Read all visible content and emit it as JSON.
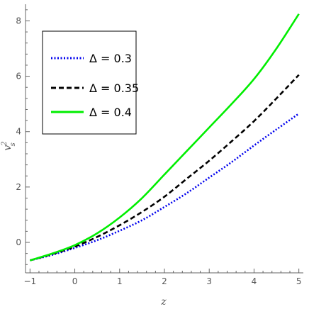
{
  "chart_data": {
    "type": "line",
    "title": "",
    "xlabel": "z",
    "ylabel_base": "v",
    "ylabel_sup": "2",
    "ylabel_sub": "s",
    "xlim": [
      -1.1,
      5.1
    ],
    "ylim": [
      -1.1,
      8.6
    ],
    "xticks": [
      -1,
      0,
      1,
      2,
      3,
      4,
      5
    ],
    "yticks": [
      0,
      2,
      4,
      6,
      8
    ],
    "x_minor_step": 0.2,
    "y_minor_step": 0.4,
    "grid": false,
    "legend_position": "top-left",
    "series": [
      {
        "name": "Δ = 0.3",
        "color": "#0000ee",
        "style": "dotted",
        "x": [
          -1,
          -0.5,
          0,
          0.5,
          1,
          1.5,
          2,
          2.5,
          3,
          3.5,
          4,
          4.5,
          5
        ],
        "y": [
          -0.65,
          -0.45,
          -0.2,
          0.08,
          0.42,
          0.8,
          1.28,
          1.78,
          2.34,
          2.9,
          3.5,
          4.08,
          4.65
        ]
      },
      {
        "name": "Δ = 0.35",
        "color": "#000000",
        "style": "dashed",
        "x": [
          -1,
          -0.5,
          0,
          0.5,
          1,
          1.5,
          2,
          2.5,
          3,
          3.5,
          4,
          4.5,
          5
        ],
        "y": [
          -0.65,
          -0.42,
          -0.15,
          0.2,
          0.62,
          1.1,
          1.65,
          2.3,
          2.95,
          3.65,
          4.38,
          5.2,
          6.05
        ]
      },
      {
        "name": "Δ = 0.4",
        "color": "#00ee00",
        "style": "solid",
        "x": [
          -1,
          -0.5,
          0,
          0.5,
          1,
          1.5,
          2,
          2.5,
          3,
          3.5,
          4,
          4.5,
          5
        ],
        "y": [
          -0.65,
          -0.4,
          -0.1,
          0.33,
          0.9,
          1.6,
          2.45,
          3.3,
          4.15,
          5.0,
          5.9,
          7.0,
          8.25
        ]
      }
    ]
  }
}
